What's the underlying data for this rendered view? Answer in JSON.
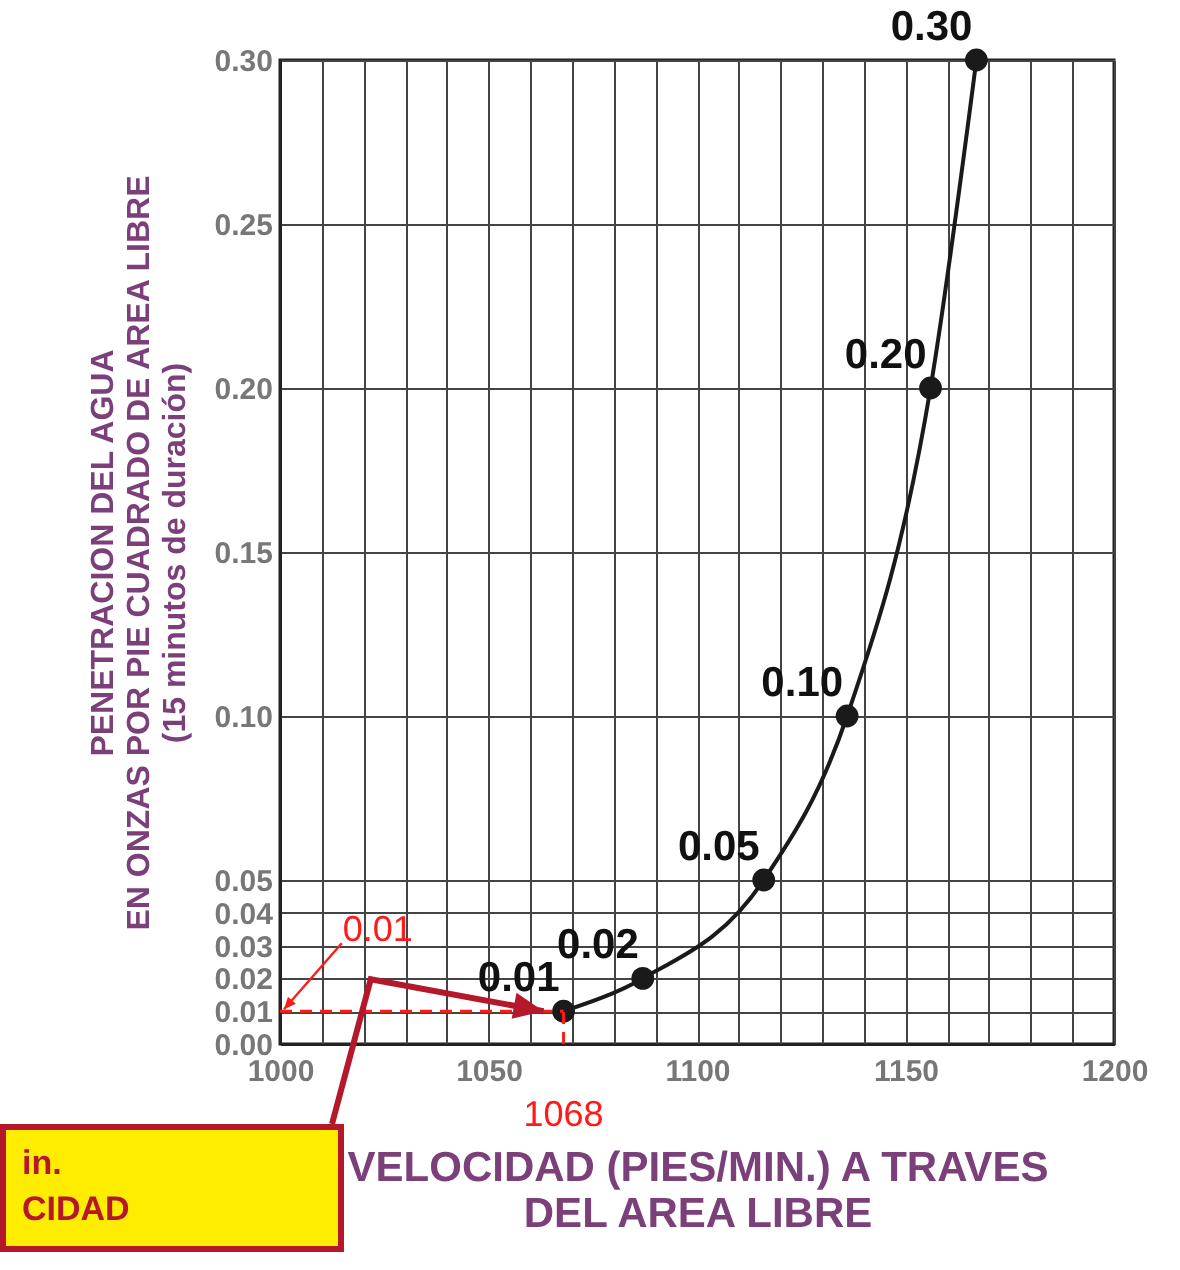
{
  "chart_data": {
    "type": "line",
    "xlabel": "VELOCIDAD (PIES/MIN.) A TRAVES\nDEL AREA LIBRE",
    "ylabel": "PENETRACION DEL AGUA\nEN ONZAS POR PIE CUADRADO DE AREA LIBRE\n(15 minutos de duración)",
    "x": [
      1068,
      1087,
      1116,
      1136,
      1156,
      1167
    ],
    "values": [
      0.01,
      0.02,
      0.05,
      0.1,
      0.2,
      0.3
    ],
    "value_labels": [
      "0.01",
      "0.02",
      "0.05",
      "0.10",
      "0.20",
      "0.30"
    ],
    "color": "#1a1a1a",
    "marker": "circle",
    "line_style": "solid",
    "grid": true,
    "xlim": [
      1000,
      1200
    ],
    "xticks": [
      1000,
      {
        "value": 1010,
        "label": null
      },
      {
        "value": 1020,
        "label": null
      },
      {
        "value": 1030,
        "label": null
      },
      {
        "value": 1040,
        "label": null
      },
      1050,
      {
        "value": 1060,
        "label": null
      },
      {
        "value": 1070,
        "label": null
      },
      {
        "value": 1080,
        "label": null
      },
      {
        "value": 1090,
        "label": null
      },
      1100,
      {
        "value": 1110,
        "label": null
      },
      {
        "value": 1120,
        "label": null
      },
      {
        "value": 1130,
        "label": null
      },
      {
        "value": 1140,
        "label": null
      },
      1150,
      {
        "value": 1160,
        "label": null
      },
      {
        "value": 1170,
        "label": null
      },
      {
        "value": 1180,
        "label": null
      },
      {
        "value": 1190,
        "label": null
      },
      1200
    ],
    "ylim": [
      0,
      0.3
    ],
    "yticks": [
      {
        "value": 0,
        "label": "0.00"
      },
      {
        "value": 0.01,
        "label": "0.01"
      },
      {
        "value": 0.02,
        "label": "0.02"
      },
      {
        "value": 0.03,
        "label": "0.03"
      },
      {
        "value": 0.04,
        "label": "0.04"
      },
      {
        "value": 0.05,
        "label": "0.05"
      },
      {
        "value": 0.1,
        "label": "0.10"
      },
      {
        "value": 0.15,
        "label": "0.15"
      },
      {
        "value": 0.2,
        "label": "0.20"
      },
      {
        "value": 0.25,
        "label": "0.25"
      },
      {
        "value": 0.3,
        "label": "0.30"
      }
    ],
    "ref_lines": [
      {
        "axis": "y",
        "value": 0.01,
        "label": "0.01",
        "color": "#ff1a1a",
        "line_style": "dashed"
      },
      {
        "axis": "x",
        "value": 1068,
        "label": "1068",
        "color": "#ff1a1a",
        "line_style": "dashed"
      }
    ],
    "annotations": [
      "in.\nCIDAD"
    ]
  }
}
